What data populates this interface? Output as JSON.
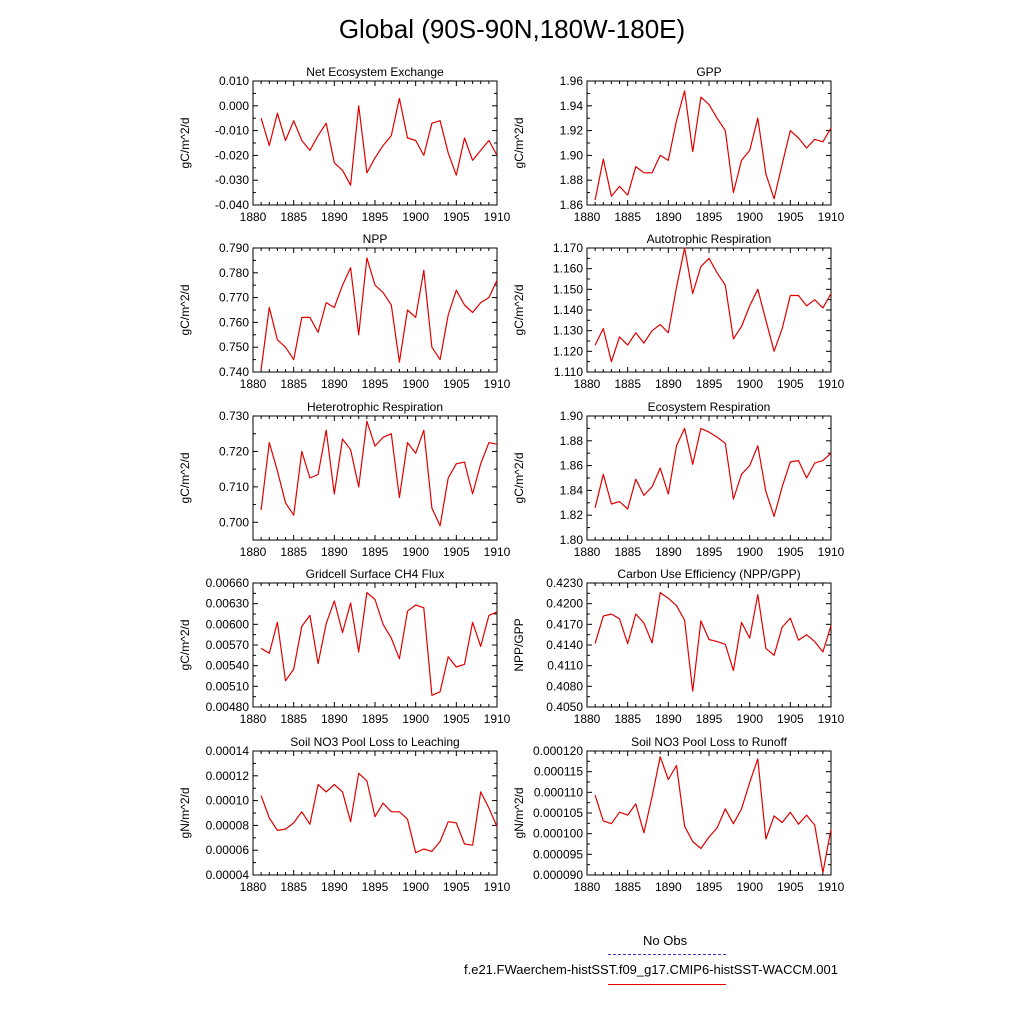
{
  "title": "Global (90S-90N,180W-180E)",
  "legend": {
    "obs_label": "No Obs",
    "run_label": "f.e21.FWaerchem-histSST.f09_g17.CMIP6-histSST-WACCM.001",
    "obs_color": "#3a3ad6",
    "run_color": "#e00000"
  },
  "chart_data": [
    {
      "type": "line",
      "title": "Net Ecosystem Exchange",
      "ylabel": "gC/m^2/d",
      "xlim": [
        1880,
        1910
      ],
      "ylim": [
        -0.04,
        0.01
      ],
      "yticks": [
        -0.04,
        -0.03,
        -0.02,
        -0.01,
        0.0,
        0.01
      ],
      "ytick_labels": [
        "-0.040",
        "-0.030",
        "-0.020",
        "-0.010",
        "0.000",
        "0.010"
      ],
      "xticks": [
        1880,
        1885,
        1890,
        1895,
        1900,
        1905,
        1910
      ],
      "x": [
        1881,
        1882,
        1883,
        1884,
        1885,
        1886,
        1887,
        1888,
        1889,
        1890,
        1891,
        1892,
        1893,
        1894,
        1895,
        1896,
        1897,
        1898,
        1899,
        1900,
        1901,
        1902,
        1903,
        1904,
        1905,
        1906,
        1907,
        1908,
        1909,
        1910
      ],
      "series": [
        {
          "values": [
            -0.005,
            -0.016,
            -0.003,
            -0.014,
            -0.006,
            -0.014,
            -0.018,
            -0.012,
            -0.007,
            -0.023,
            -0.026,
            -0.032,
            0.0,
            -0.027,
            -0.021,
            -0.016,
            -0.012,
            0.003,
            -0.013,
            -0.014,
            -0.02,
            -0.007,
            -0.006,
            -0.019,
            -0.028,
            -0.013,
            -0.022,
            -0.018,
            -0.014,
            -0.02
          ]
        }
      ]
    },
    {
      "type": "line",
      "title": "GPP",
      "ylabel": "gC/m^2/d",
      "xlim": [
        1880,
        1910
      ],
      "ylim": [
        1.86,
        1.96
      ],
      "yticks": [
        1.86,
        1.88,
        1.9,
        1.92,
        1.94,
        1.96
      ],
      "ytick_labels": [
        "1.86",
        "1.88",
        "1.90",
        "1.92",
        "1.94",
        "1.96"
      ],
      "xticks": [
        1880,
        1885,
        1890,
        1895,
        1900,
        1905,
        1910
      ],
      "x": [
        1881,
        1882,
        1883,
        1884,
        1885,
        1886,
        1887,
        1888,
        1889,
        1890,
        1891,
        1892,
        1893,
        1894,
        1895,
        1896,
        1897,
        1898,
        1899,
        1900,
        1901,
        1902,
        1903,
        1904,
        1905,
        1906,
        1907,
        1908,
        1909,
        1910
      ],
      "series": [
        {
          "values": [
            1.864,
            1.897,
            1.867,
            1.875,
            1.868,
            1.891,
            1.886,
            1.886,
            1.9,
            1.896,
            1.928,
            1.952,
            1.903,
            1.947,
            1.941,
            1.93,
            1.92,
            1.87,
            1.896,
            1.904,
            1.93,
            1.885,
            1.865,
            1.893,
            1.92,
            1.914,
            1.906,
            1.913,
            1.911,
            1.922
          ]
        }
      ]
    },
    {
      "type": "line",
      "title": "NPP",
      "ylabel": "gC/m^2/d",
      "xlim": [
        1880,
        1910
      ],
      "ylim": [
        0.74,
        0.79
      ],
      "yticks": [
        0.74,
        0.75,
        0.76,
        0.77,
        0.78,
        0.79
      ],
      "ytick_labels": [
        "0.740",
        "0.750",
        "0.760",
        "0.770",
        "0.780",
        "0.790"
      ],
      "xticks": [
        1880,
        1885,
        1890,
        1895,
        1900,
        1905,
        1910
      ],
      "x": [
        1881,
        1882,
        1883,
        1884,
        1885,
        1886,
        1887,
        1888,
        1889,
        1890,
        1891,
        1892,
        1893,
        1894,
        1895,
        1896,
        1897,
        1898,
        1899,
        1900,
        1901,
        1902,
        1903,
        1904,
        1905,
        1906,
        1907,
        1908,
        1909,
        1910
      ],
      "series": [
        {
          "values": [
            0.741,
            0.766,
            0.753,
            0.75,
            0.745,
            0.762,
            0.762,
            0.756,
            0.768,
            0.766,
            0.775,
            0.782,
            0.755,
            0.786,
            0.775,
            0.772,
            0.767,
            0.744,
            0.765,
            0.762,
            0.781,
            0.75,
            0.745,
            0.763,
            0.773,
            0.767,
            0.764,
            0.768,
            0.77,
            0.777
          ]
        }
      ]
    },
    {
      "type": "line",
      "title": "Autotrophic Respiration",
      "ylabel": "gC/m^2/d",
      "xlim": [
        1880,
        1910
      ],
      "ylim": [
        1.11,
        1.17
      ],
      "yticks": [
        1.11,
        1.12,
        1.13,
        1.14,
        1.15,
        1.16,
        1.17
      ],
      "ytick_labels": [
        "1.110",
        "1.120",
        "1.130",
        "1.140",
        "1.150",
        "1.160",
        "1.170"
      ],
      "xticks": [
        1880,
        1885,
        1890,
        1895,
        1900,
        1905,
        1910
      ],
      "x": [
        1881,
        1882,
        1883,
        1884,
        1885,
        1886,
        1887,
        1888,
        1889,
        1890,
        1891,
        1892,
        1893,
        1894,
        1895,
        1896,
        1897,
        1898,
        1899,
        1900,
        1901,
        1902,
        1903,
        1904,
        1905,
        1906,
        1907,
        1908,
        1909,
        1910
      ],
      "series": [
        {
          "values": [
            1.123,
            1.131,
            1.115,
            1.127,
            1.123,
            1.129,
            1.124,
            1.13,
            1.133,
            1.129,
            1.151,
            1.17,
            1.148,
            1.161,
            1.165,
            1.158,
            1.152,
            1.126,
            1.132,
            1.142,
            1.15,
            1.135,
            1.12,
            1.131,
            1.147,
            1.147,
            1.142,
            1.145,
            1.141,
            1.148
          ]
        }
      ]
    },
    {
      "type": "line",
      "title": "Heterotrophic Respiration",
      "ylabel": "gC/m^2/d",
      "xlim": [
        1880,
        1910
      ],
      "ylim": [
        0.695,
        0.73
      ],
      "yticks": [
        0.7,
        0.71,
        0.72,
        0.73
      ],
      "ytick_labels": [
        "0.700",
        "0.710",
        "0.720",
        "0.730"
      ],
      "xticks": [
        1880,
        1885,
        1890,
        1895,
        1900,
        1905,
        1910
      ],
      "x": [
        1881,
        1882,
        1883,
        1884,
        1885,
        1886,
        1887,
        1888,
        1889,
        1890,
        1891,
        1892,
        1893,
        1894,
        1895,
        1896,
        1897,
        1898,
        1899,
        1900,
        1901,
        1902,
        1903,
        1904,
        1905,
        1906,
        1907,
        1908,
        1909,
        1910
      ],
      "series": [
        {
          "values": [
            0.7035,
            0.7225,
            0.7145,
            0.7055,
            0.702,
            0.72,
            0.7125,
            0.7135,
            0.726,
            0.708,
            0.7235,
            0.7205,
            0.71,
            0.7285,
            0.7215,
            0.724,
            0.725,
            0.707,
            0.7225,
            0.7195,
            0.726,
            0.704,
            0.699,
            0.7125,
            0.7165,
            0.717,
            0.708,
            0.7165,
            0.7225,
            0.722
          ]
        }
      ]
    },
    {
      "type": "line",
      "title": "Ecosystem Respiration",
      "ylabel": "gC/m^2/d",
      "xlim": [
        1880,
        1910
      ],
      "ylim": [
        1.8,
        1.9
      ],
      "yticks": [
        1.8,
        1.82,
        1.84,
        1.86,
        1.88,
        1.9
      ],
      "ytick_labels": [
        "1.80",
        "1.82",
        "1.84",
        "1.86",
        "1.88",
        "1.90"
      ],
      "xticks": [
        1880,
        1885,
        1890,
        1895,
        1900,
        1905,
        1910
      ],
      "x": [
        1881,
        1882,
        1883,
        1884,
        1885,
        1886,
        1887,
        1888,
        1889,
        1890,
        1891,
        1892,
        1893,
        1894,
        1895,
        1896,
        1897,
        1898,
        1899,
        1900,
        1901,
        1902,
        1903,
        1904,
        1905,
        1906,
        1907,
        1908,
        1909,
        1910
      ],
      "series": [
        {
          "values": [
            1.826,
            1.853,
            1.829,
            1.831,
            1.825,
            1.849,
            1.836,
            1.843,
            1.858,
            1.837,
            1.876,
            1.89,
            1.861,
            1.89,
            1.887,
            1.883,
            1.878,
            1.833,
            1.853,
            1.86,
            1.876,
            1.839,
            1.819,
            1.843,
            1.863,
            1.864,
            1.85,
            1.862,
            1.864,
            1.87
          ]
        }
      ]
    },
    {
      "type": "line",
      "title": "Gridcell Surface CH4 Flux",
      "ylabel": "gC/m^2/d",
      "xlim": [
        1880,
        1910
      ],
      "ylim": [
        0.0048,
        0.0066
      ],
      "yticks": [
        0.0048,
        0.0051,
        0.0054,
        0.0057,
        0.006,
        0.0063,
        0.0066
      ],
      "ytick_labels": [
        "0.00480",
        "0.00510",
        "0.00540",
        "0.00570",
        "0.00600",
        "0.00630",
        "0.00660"
      ],
      "xticks": [
        1880,
        1885,
        1890,
        1895,
        1900,
        1905,
        1910
      ],
      "x": [
        1881,
        1882,
        1883,
        1884,
        1885,
        1886,
        1887,
        1888,
        1889,
        1890,
        1891,
        1892,
        1893,
        1894,
        1895,
        1896,
        1897,
        1898,
        1899,
        1900,
        1901,
        1902,
        1903,
        1904,
        1905,
        1906,
        1907,
        1908,
        1909,
        1910
      ],
      "series": [
        {
          "values": [
            0.00565,
            0.00558,
            0.00603,
            0.00518,
            0.00535,
            0.00597,
            0.00613,
            0.00543,
            0.00601,
            0.00634,
            0.00588,
            0.00631,
            0.0056,
            0.00646,
            0.00636,
            0.006,
            0.0058,
            0.0055,
            0.00619,
            0.00628,
            0.00624,
            0.00497,
            0.00502,
            0.00553,
            0.00538,
            0.00542,
            0.00603,
            0.00568,
            0.00613,
            0.00618
          ]
        }
      ]
    },
    {
      "type": "line",
      "title": "Carbon Use Efficiency (NPP/GPP)",
      "ylabel": "NPP/GPP",
      "xlim": [
        1880,
        1910
      ],
      "ylim": [
        0.405,
        0.423
      ],
      "yticks": [
        0.405,
        0.408,
        0.411,
        0.414,
        0.417,
        0.42,
        0.423
      ],
      "ytick_labels": [
        "0.4050",
        "0.4080",
        "0.4110",
        "0.4140",
        "0.4170",
        "0.4200",
        "0.4230"
      ],
      "xticks": [
        1880,
        1885,
        1890,
        1895,
        1900,
        1905,
        1910
      ],
      "x": [
        1881,
        1882,
        1883,
        1884,
        1885,
        1886,
        1887,
        1888,
        1889,
        1890,
        1891,
        1892,
        1893,
        1894,
        1895,
        1896,
        1897,
        1898,
        1899,
        1900,
        1901,
        1902,
        1903,
        1904,
        1905,
        1906,
        1907,
        1908,
        1909,
        1910
      ],
      "series": [
        {
          "values": [
            0.4142,
            0.4182,
            0.4185,
            0.4178,
            0.4142,
            0.4185,
            0.4172,
            0.4143,
            0.4216,
            0.4208,
            0.4197,
            0.4176,
            0.4073,
            0.4175,
            0.4148,
            0.4145,
            0.4141,
            0.4103,
            0.4173,
            0.415,
            0.4213,
            0.4135,
            0.4125,
            0.4166,
            0.4179,
            0.4147,
            0.4155,
            0.4145,
            0.413,
            0.4168
          ]
        }
      ]
    },
    {
      "type": "line",
      "title": "Soil NO3 Pool Loss to Leaching",
      "ylabel": "gN/m^2/d",
      "xlim": [
        1880,
        1910
      ],
      "ylim": [
        4e-05,
        0.00014
      ],
      "yticks": [
        4e-05,
        6e-05,
        8e-05,
        0.0001,
        0.00012,
        0.00014
      ],
      "ytick_labels": [
        "0.00004",
        "0.00006",
        "0.00008",
        "0.00010",
        "0.00012",
        "0.00014"
      ],
      "xticks": [
        1880,
        1885,
        1890,
        1895,
        1900,
        1905,
        1910
      ],
      "x": [
        1881,
        1882,
        1883,
        1884,
        1885,
        1886,
        1887,
        1888,
        1889,
        1890,
        1891,
        1892,
        1893,
        1894,
        1895,
        1896,
        1897,
        1898,
        1899,
        1900,
        1901,
        1902,
        1903,
        1904,
        1905,
        1906,
        1907,
        1908,
        1909,
        1910
      ],
      "series": [
        {
          "values": [
            0.000104,
            8.6e-05,
            7.6e-05,
            7.7e-05,
            8.2e-05,
            9.1e-05,
            8.1e-05,
            0.000113,
            0.000107,
            0.000113,
            0.000107,
            8.3e-05,
            0.000122,
            0.000116,
            8.7e-05,
            9.8e-05,
            9.1e-05,
            9.1e-05,
            8.5e-05,
            5.8e-05,
            6.1e-05,
            5.9e-05,
            6.7e-05,
            8.3e-05,
            8.2e-05,
            6.5e-05,
            6.4e-05,
            0.000107,
            9.4e-05,
            7.9e-05
          ]
        }
      ]
    },
    {
      "type": "line",
      "title": "Soil NO3 Pool Loss to Runoff",
      "ylabel": "gN/m^2/d",
      "xlim": [
        1880,
        1910
      ],
      "ylim": [
        9e-05,
        0.00012
      ],
      "yticks": [
        9e-05,
        9.5e-05,
        0.0001,
        0.000105,
        0.00011,
        0.000115,
        0.00012
      ],
      "ytick_labels": [
        "0.000090",
        "0.000095",
        "0.000100",
        "0.000105",
        "0.000110",
        "0.000115",
        "0.000120"
      ],
      "xticks": [
        1880,
        1885,
        1890,
        1895,
        1900,
        1905,
        1910
      ],
      "x": [
        1881,
        1882,
        1883,
        1884,
        1885,
        1886,
        1887,
        1888,
        1889,
        1890,
        1891,
        1892,
        1893,
        1894,
        1895,
        1896,
        1897,
        1898,
        1899,
        1900,
        1901,
        1902,
        1903,
        1904,
        1905,
        1906,
        1907,
        1908,
        1909,
        1910
      ],
      "series": [
        {
          "values": [
            0.0001093,
            0.0001031,
            0.0001024,
            0.0001052,
            0.0001045,
            0.0001072,
            0.0001002,
            0.000109,
            0.0001186,
            0.0001131,
            0.0001165,
            0.0001018,
            9.81e-05,
            9.64e-05,
            9.92e-05,
            0.0001014,
            0.000106,
            0.0001024,
            0.000106,
            0.0001124,
            0.0001181,
            9.87e-05,
            0.0001043,
            0.0001027,
            0.0001052,
            0.0001023,
            0.0001045,
            0.0001021,
            9.06e-05,
            0.0001011
          ]
        }
      ]
    }
  ]
}
